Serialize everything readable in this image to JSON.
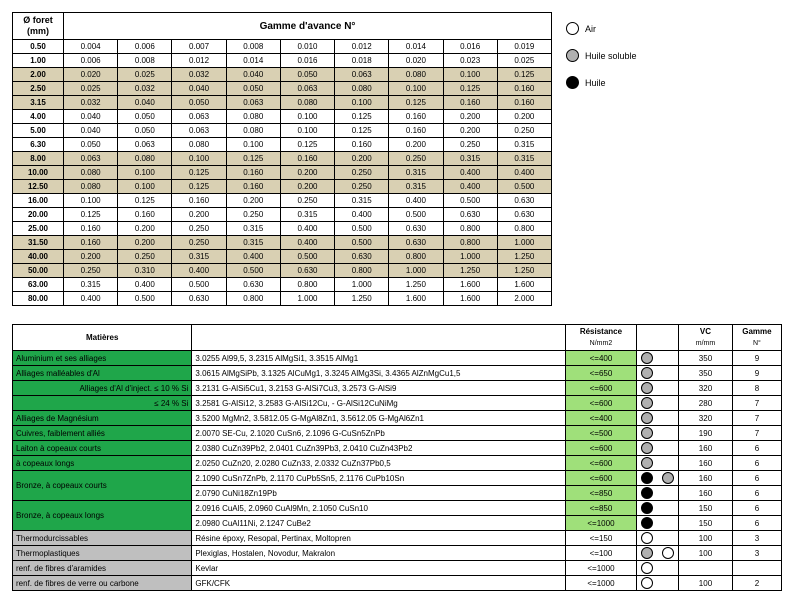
{
  "feed": {
    "header_left_l1": "Ø foret",
    "header_left_l2": "(mm)",
    "header_top": "Gamme d'avance N°",
    "rows": [
      {
        "dia": "0.50",
        "shade": false,
        "v": [
          "0.004",
          "0.006",
          "0.007",
          "0.008",
          "0.010",
          "0.012",
          "0.014",
          "0.016",
          "0.019"
        ]
      },
      {
        "dia": "1.00",
        "shade": false,
        "v": [
          "0.006",
          "0.008",
          "0.012",
          "0.014",
          "0.016",
          "0.018",
          "0.020",
          "0.023",
          "0.025"
        ]
      },
      {
        "dia": "2.00",
        "shade": true,
        "v": [
          "0.020",
          "0.025",
          "0.032",
          "0.040",
          "0.050",
          "0.063",
          "0.080",
          "0.100",
          "0.125"
        ]
      },
      {
        "dia": "2.50",
        "shade": true,
        "v": [
          "0.025",
          "0.032",
          "0.040",
          "0.050",
          "0.063",
          "0.080",
          "0.100",
          "0.125",
          "0.160"
        ]
      },
      {
        "dia": "3.15",
        "shade": true,
        "v": [
          "0.032",
          "0.040",
          "0.050",
          "0.063",
          "0.080",
          "0.100",
          "0.125",
          "0.160",
          "0.160"
        ]
      },
      {
        "dia": "4.00",
        "shade": false,
        "v": [
          "0.040",
          "0.050",
          "0.063",
          "0.080",
          "0.100",
          "0.125",
          "0.160",
          "0.200",
          "0.200"
        ]
      },
      {
        "dia": "5.00",
        "shade": false,
        "v": [
          "0.040",
          "0.050",
          "0.063",
          "0.080",
          "0.100",
          "0.125",
          "0.160",
          "0.200",
          "0.250"
        ]
      },
      {
        "dia": "6.30",
        "shade": false,
        "v": [
          "0.050",
          "0.063",
          "0.080",
          "0.100",
          "0.125",
          "0.160",
          "0.200",
          "0.250",
          "0.315"
        ]
      },
      {
        "dia": "8.00",
        "shade": true,
        "v": [
          "0.063",
          "0.080",
          "0.100",
          "0.125",
          "0.160",
          "0.200",
          "0.250",
          "0.315",
          "0.315"
        ]
      },
      {
        "dia": "10.00",
        "shade": true,
        "v": [
          "0.080",
          "0.100",
          "0.125",
          "0.160",
          "0.200",
          "0.250",
          "0.315",
          "0.400",
          "0.400"
        ]
      },
      {
        "dia": "12.50",
        "shade": true,
        "v": [
          "0.080",
          "0.100",
          "0.125",
          "0.160",
          "0.200",
          "0.250",
          "0.315",
          "0.400",
          "0.500"
        ]
      },
      {
        "dia": "16.00",
        "shade": false,
        "v": [
          "0.100",
          "0.125",
          "0.160",
          "0.200",
          "0.250",
          "0.315",
          "0.400",
          "0.500",
          "0.630"
        ]
      },
      {
        "dia": "20.00",
        "shade": false,
        "v": [
          "0.125",
          "0.160",
          "0.200",
          "0.250",
          "0.315",
          "0.400",
          "0.500",
          "0.630",
          "0.630"
        ]
      },
      {
        "dia": "25.00",
        "shade": false,
        "v": [
          "0.160",
          "0.200",
          "0.250",
          "0.315",
          "0.400",
          "0.500",
          "0.630",
          "0.800",
          "0.800"
        ]
      },
      {
        "dia": "31.50",
        "shade": true,
        "v": [
          "0.160",
          "0.200",
          "0.250",
          "0.315",
          "0.400",
          "0.500",
          "0.630",
          "0.800",
          "1.000"
        ]
      },
      {
        "dia": "40.00",
        "shade": true,
        "v": [
          "0.200",
          "0.250",
          "0.315",
          "0.400",
          "0.500",
          "0.630",
          "0.800",
          "1.000",
          "1.250"
        ]
      },
      {
        "dia": "50.00",
        "shade": true,
        "v": [
          "0.250",
          "0.310",
          "0.400",
          "0.500",
          "0.630",
          "0.800",
          "1.000",
          "1.250",
          "1.250"
        ]
      },
      {
        "dia": "63.00",
        "shade": false,
        "v": [
          "0.315",
          "0.400",
          "0.500",
          "0.630",
          "0.800",
          "1.000",
          "1.250",
          "1.600",
          "1.600"
        ]
      },
      {
        "dia": "80.00",
        "shade": false,
        "v": [
          "0.400",
          "0.500",
          "0.630",
          "0.800",
          "1.000",
          "1.250",
          "1.600",
          "1.600",
          "2.000"
        ]
      }
    ]
  },
  "legend": {
    "air": "Air",
    "sol": "Huile soluble",
    "oil": "Huile"
  },
  "mat": {
    "header_left": "Matières",
    "header_res_l1": "Résistance",
    "header_res_l2": "N/mm2",
    "header_vc_l1": "VC",
    "header_vc_l2": "m/mm",
    "header_gam_l1": "Gamme",
    "header_gam_l2": "N°",
    "rows": [
      {
        "cl": "green",
        "mat": "Aluminium et ses alliages",
        "des": "3.0255 Al99,5, 3.2315 AlMgSi1, 3.3515 AlMg1",
        "res": "<=400",
        "d1": "sol",
        "d2": "",
        "vc": "350",
        "g": "9"
      },
      {
        "cl": "green",
        "mat": "Alliages malléables d'Al",
        "des": "3.0615 AlMgSiPb, 3.1325 AlCuMg1, 3.3245 AlMg3Si, 3.4365 AlZnMgCu1,5",
        "res": "<=650",
        "d1": "sol",
        "d2": "",
        "vc": "350",
        "g": "9"
      },
      {
        "cl": "green",
        "mat": "Alliages d'Al d'inject. ≤ 10 % Si",
        "des": "3.2131 G-AlSi5Cu1, 3.2153 G-AlSi7Cu3, 3.2573 G-AlSi9",
        "res": "<=600",
        "d1": "sol",
        "d2": "",
        "vc": "320",
        "g": "8"
      },
      {
        "cl": "green",
        "mat": "≤ 24 % Si",
        "des": "3.2581 G-AlSi12, 3.2583 G-AlSi12Cu, - G-AlSi12CuNiMg",
        "res": "<=600",
        "d1": "sol",
        "d2": "",
        "vc": "280",
        "g": "7"
      },
      {
        "cl": "green",
        "mat": "Alliages de Magnésium",
        "des": "3.5200 MgMn2, 3.5812.05 G-MgAl8Zn1, 3.5612.05 G-MgAl6Zn1",
        "res": "<=400",
        "d1": "sol",
        "d2": "",
        "vc": "320",
        "g": "7"
      },
      {
        "cl": "green",
        "mat": "Cuivres, faiblement alliés",
        "des": "2.0070 SE-Cu, 2.1020 CuSn6, 2.1096 G-CuSn5ZnPb",
        "res": "<=500",
        "d1": "sol",
        "d2": "",
        "vc": "190",
        "g": "7"
      },
      {
        "cl": "green",
        "mat": "Laiton à copeaux courts",
        "des": "2.0380 CuZn39Pb2, 2.0401 CuZn39Pb3, 2.0410 CuZn43Pb2",
        "res": "<=600",
        "d1": "sol",
        "d2": "",
        "vc": "160",
        "g": "6"
      },
      {
        "cl": "green",
        "mat": "à copeaux longs",
        "des": "2.0250 CuZn20, 2.0280 CuZn33, 2.0332 CuZn37Pb0,5",
        "res": "<=600",
        "d1": "sol",
        "d2": "",
        "vc": "160",
        "g": "6"
      },
      {
        "cl": "green",
        "mat": "Bronze, à copeaux courts",
        "des": "2.1090 CuSn7ZnPb, 2.1170 CuPb5Sn5, 2.1176 CuPb10Sn",
        "res": "<=600",
        "d1": "oil",
        "d2": "sol",
        "vc": "160",
        "g": "6",
        "rowsp": 2
      },
      {
        "cl": "green",
        "skip": true,
        "des": "2.0790 CuNi18Zn19Pb",
        "res": "<=850",
        "d1": "oil",
        "d2": "",
        "vc": "160",
        "g": "6"
      },
      {
        "cl": "green",
        "mat": "Bronze, à copeaux longs",
        "des": "2.0916 CuAl5, 2.0960 CuAl9Mn, 2.1050 CuSn10",
        "res": "<=850",
        "d1": "oil",
        "d2": "",
        "vc": "150",
        "g": "6",
        "rowsp": 2
      },
      {
        "cl": "green",
        "skip": true,
        "des": "2.0980 CuAl11Ni, 2.1247 CuBe2",
        "res": "<=1000",
        "d1": "oil",
        "d2": "",
        "vc": "150",
        "g": "6"
      },
      {
        "cl": "grey",
        "mat": "Thermodurcissables",
        "des": "Résine époxy, Resopal, Pertinax, Moltopren",
        "res": "<=150",
        "d1": "air",
        "d2": "",
        "vc": "100",
        "g": "3"
      },
      {
        "cl": "grey",
        "mat": "Thermoplastiques",
        "des": "Plexiglas, Hostalen, Novodur, Makralon",
        "res": "<=100",
        "d1": "sol",
        "d2": "air",
        "vc": "100",
        "g": "3"
      },
      {
        "cl": "grey",
        "mat": "renf. de fibres d'aramides",
        "des": "Kevlar",
        "res": "<=1000",
        "d1": "air",
        "d2": "",
        "vc": "",
        "g": ""
      },
      {
        "cl": "grey",
        "mat": "renf. de fibres de verre ou carbone",
        "des": "GFK/CFK",
        "res": "<=1000",
        "d1": "air",
        "d2": "",
        "vc": "100",
        "g": "2"
      }
    ]
  }
}
